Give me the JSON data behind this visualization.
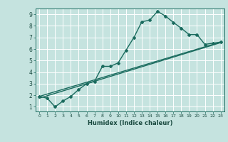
{
  "bg_color": "#c5e3df",
  "grid_color": "#e8f5f5",
  "line_color": "#1a6b5e",
  "xlabel": "Humidex (Indice chaleur)",
  "xticks": [
    0,
    1,
    2,
    3,
    4,
    5,
    6,
    7,
    8,
    9,
    10,
    11,
    12,
    13,
    14,
    15,
    16,
    17,
    18,
    19,
    20,
    21,
    22,
    23
  ],
  "yticks": [
    1,
    2,
    3,
    4,
    5,
    6,
    7,
    8,
    9
  ],
  "xlim": [
    -0.5,
    23.5
  ],
  "ylim": [
    0.6,
    9.5
  ],
  "line1_x": [
    0,
    1,
    2,
    3,
    4,
    5,
    6,
    7,
    8,
    9,
    10,
    11,
    12,
    13,
    14,
    15,
    16,
    17,
    18,
    19,
    20,
    21,
    22,
    23
  ],
  "line1_y": [
    1.9,
    1.75,
    1.0,
    1.5,
    1.9,
    2.5,
    3.0,
    3.2,
    4.5,
    4.5,
    4.8,
    5.9,
    7.0,
    8.35,
    8.5,
    9.25,
    8.85,
    8.3,
    7.8,
    7.25,
    7.25,
    6.4,
    6.5,
    6.6
  ],
  "line2_x": [
    0,
    23
  ],
  "line2_y": [
    1.9,
    6.6
  ],
  "line3_x": [
    0,
    23
  ],
  "line3_y": [
    1.75,
    6.55
  ]
}
